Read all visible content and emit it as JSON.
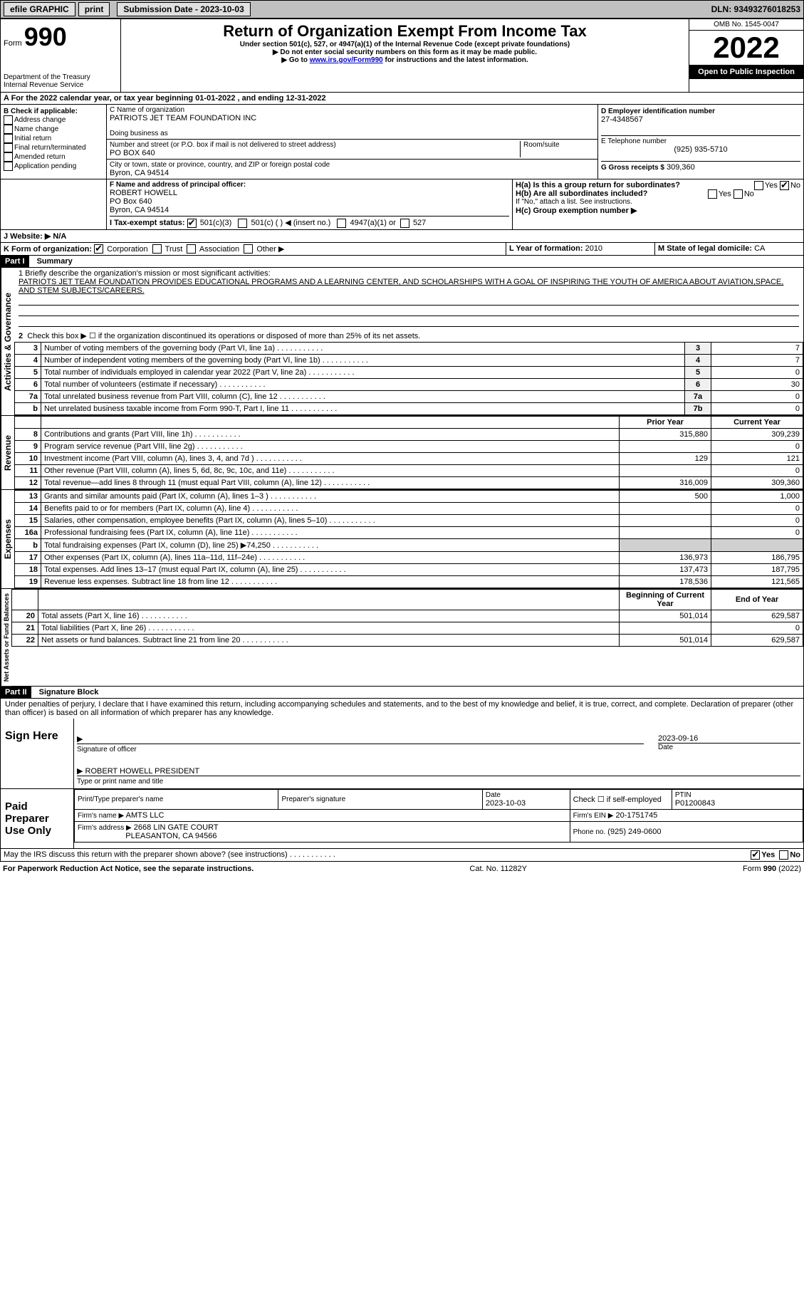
{
  "topbar": {
    "efile": "efile GRAPHIC",
    "print": "print",
    "submission_label": "Submission Date - 2023-10-03",
    "dln_label": "DLN: 93493276018253"
  },
  "header": {
    "form_word": "Form",
    "form_no": "990",
    "dept": "Department of the Treasury",
    "irs": "Internal Revenue Service",
    "title": "Return of Organization Exempt From Income Tax",
    "subtitle": "Under section 501(c), 527, or 4947(a)(1) of the Internal Revenue Code (except private foundations)",
    "note1": "▶ Do not enter social security numbers on this form as it may be made public.",
    "note2_pre": "▶ Go to ",
    "note2_link": "www.irs.gov/Form990",
    "note2_post": " for instructions and the latest information.",
    "omb": "OMB No. 1545-0047",
    "year": "2022",
    "open": "Open to Public Inspection"
  },
  "period": {
    "text": "A For the 2022 calendar year, or tax year beginning 01-01-2022  , and ending 12-31-2022"
  },
  "sectionB": {
    "label": "B Check if applicable:",
    "opts": [
      "Address change",
      "Name change",
      "Initial return",
      "Final return/terminated",
      "Amended return",
      "Application pending"
    ]
  },
  "sectionC": {
    "name_label": "C Name of organization",
    "name": "PATRIOTS JET TEAM FOUNDATION INC",
    "dba_label": "Doing business as",
    "addr_label": "Number and street (or P.O. box if mail is not delivered to street address)",
    "room_label": "Room/suite",
    "addr": "PO BOX 640",
    "city_label": "City or town, state or province, country, and ZIP or foreign postal code",
    "city": "Byron, CA  94514"
  },
  "sectionD": {
    "label": "D Employer identification number",
    "ein": "27-4348567",
    "tel_label": "E Telephone number",
    "tel": "(925) 935-5710",
    "gross_label": "G Gross receipts $",
    "gross": "309,360"
  },
  "sectionF": {
    "label": "F  Name and address of principal officer:",
    "name": "ROBERT HOWELL",
    "addr1": "PO Box 640",
    "addr2": "Byron, CA  94514"
  },
  "sectionH": {
    "a": "H(a)  Is this a group return for subordinates?",
    "b": "H(b)  Are all subordinates included?",
    "ifno": "If \"No,\" attach a list. See instructions.",
    "c": "H(c)  Group exemption number ▶",
    "yes": "Yes",
    "no": "No"
  },
  "taxexempt": {
    "label": "I  Tax-exempt status:",
    "o1": "501(c)(3)",
    "o2": "501(c) (  ) ◀ (insert no.)",
    "o3": "4947(a)(1) or",
    "o4": "527"
  },
  "website": {
    "label": "J  Website: ▶",
    "value": "N/A"
  },
  "sectionK": {
    "label": "K Form of organization:",
    "opts": [
      "Corporation",
      "Trust",
      "Association",
      "Other ▶"
    ]
  },
  "sectionL": {
    "label": "L Year of formation:",
    "value": "2010"
  },
  "sectionM": {
    "label": "M State of legal domicile:",
    "value": "CA"
  },
  "part1": {
    "hdr": "Part I",
    "title": "Summary",
    "mission_label": "1   Briefly describe the organization's mission or most significant activities:",
    "mission": "PATRIOTS JET TEAM FOUNDATION PROVIDES EDUCATIONAL PROGRAMS AND A LEARNING CENTER, AND SCHOLARSHIPS WITH A GOAL OF INSPIRING THE YOUTH OF AMERICA ABOUT AVIATION,SPACE, AND STEM SUBJECTS/CAREERS.",
    "line2": "Check this box ▶ ☐ if the organization discontinued its operations or disposed of more than 25% of its net assets.",
    "vert_ag": "Activities & Governance",
    "vert_rev": "Revenue",
    "vert_exp": "Expenses",
    "vert_na": "Net Assets or Fund Balances",
    "prior": "Prior Year",
    "current": "Current Year",
    "begin": "Beginning of Current Year",
    "end": "End of Year",
    "lines_ag": [
      {
        "n": "3",
        "t": "Number of voting members of the governing body (Part VI, line 1a)",
        "box": "3",
        "v": "7"
      },
      {
        "n": "4",
        "t": "Number of independent voting members of the governing body (Part VI, line 1b)",
        "box": "4",
        "v": "7"
      },
      {
        "n": "5",
        "t": "Total number of individuals employed in calendar year 2022 (Part V, line 2a)",
        "box": "5",
        "v": "0"
      },
      {
        "n": "6",
        "t": "Total number of volunteers (estimate if necessary)",
        "box": "6",
        "v": "30"
      },
      {
        "n": "7a",
        "t": "Total unrelated business revenue from Part VIII, column (C), line 12",
        "box": "7a",
        "v": "0"
      },
      {
        "n": "b",
        "t": "Net unrelated business taxable income from Form 990-T, Part I, line 11",
        "box": "7b",
        "v": "0"
      }
    ],
    "lines_rev": [
      {
        "n": "8",
        "t": "Contributions and grants (Part VIII, line 1h)",
        "p": "315,880",
        "c": "309,239"
      },
      {
        "n": "9",
        "t": "Program service revenue (Part VIII, line 2g)",
        "p": "",
        "c": "0"
      },
      {
        "n": "10",
        "t": "Investment income (Part VIII, column (A), lines 3, 4, and 7d )",
        "p": "129",
        "c": "121"
      },
      {
        "n": "11",
        "t": "Other revenue (Part VIII, column (A), lines 5, 6d, 8c, 9c, 10c, and 11e)",
        "p": "",
        "c": "0"
      },
      {
        "n": "12",
        "t": "Total revenue—add lines 8 through 11 (must equal Part VIII, column (A), line 12)",
        "p": "316,009",
        "c": "309,360"
      }
    ],
    "lines_exp": [
      {
        "n": "13",
        "t": "Grants and similar amounts paid (Part IX, column (A), lines 1–3 )",
        "p": "500",
        "c": "1,000"
      },
      {
        "n": "14",
        "t": "Benefits paid to or for members (Part IX, column (A), line 4)",
        "p": "",
        "c": "0"
      },
      {
        "n": "15",
        "t": "Salaries, other compensation, employee benefits (Part IX, column (A), lines 5–10)",
        "p": "",
        "c": "0"
      },
      {
        "n": "16a",
        "t": "Professional fundraising fees (Part IX, column (A), line 11e)",
        "p": "",
        "c": "0"
      },
      {
        "n": "b",
        "t": "Total fundraising expenses (Part IX, column (D), line 25) ▶74,250",
        "p": "shade",
        "c": "shade"
      },
      {
        "n": "17",
        "t": "Other expenses (Part IX, column (A), lines 11a–11d, 11f–24e)",
        "p": "136,973",
        "c": "186,795"
      },
      {
        "n": "18",
        "t": "Total expenses. Add lines 13–17 (must equal Part IX, column (A), line 25)",
        "p": "137,473",
        "c": "187,795"
      },
      {
        "n": "19",
        "t": "Revenue less expenses. Subtract line 18 from line 12",
        "p": "178,536",
        "c": "121,565"
      }
    ],
    "lines_na": [
      {
        "n": "20",
        "t": "Total assets (Part X, line 16)",
        "p": "501,014",
        "c": "629,587"
      },
      {
        "n": "21",
        "t": "Total liabilities (Part X, line 26)",
        "p": "",
        "c": "0"
      },
      {
        "n": "22",
        "t": "Net assets or fund balances. Subtract line 21 from line 20",
        "p": "501,014",
        "c": "629,587"
      }
    ]
  },
  "part2": {
    "hdr": "Part II",
    "title": "Signature Block",
    "decl": "Under penalties of perjury, I declare that I have examined this return, including accompanying schedules and statements, and to the best of my knowledge and belief, it is true, correct, and complete. Declaration of preparer (other than officer) is based on all information of which preparer has any knowledge."
  },
  "sign": {
    "here": "Sign Here",
    "sig_label": "Signature of officer",
    "date": "2023-09-16",
    "date_label": "Date",
    "name": "ROBERT HOWELL  PRESIDENT",
    "name_label": "Type or print name and title"
  },
  "paid": {
    "label": "Paid Preparer Use Only",
    "print_label": "Print/Type preparer's name",
    "sig_label": "Preparer's signature",
    "date_label": "Date",
    "date": "2023-10-03",
    "check_label": "Check ☐ if self-employed",
    "ptin_label": "PTIN",
    "ptin": "P01200843",
    "firm_name_label": "Firm's name   ▶",
    "firm_name": "AMTS LLC",
    "firm_ein_label": "Firm's EIN ▶",
    "firm_ein": "20-1751745",
    "firm_addr_label": "Firm's address ▶",
    "firm_addr": "2668 LIN GATE COURT",
    "firm_city": "PLEASANTON, CA  94566",
    "phone_label": "Phone no.",
    "phone": "(925) 249-0600"
  },
  "discuss": {
    "text": "May the IRS discuss this return with the preparer shown above? (see instructions)",
    "yes": "Yes",
    "no": "No"
  },
  "footer": {
    "left": "For Paperwork Reduction Act Notice, see the separate instructions.",
    "mid": "Cat. No. 11282Y",
    "right": "Form 990 (2022)"
  }
}
